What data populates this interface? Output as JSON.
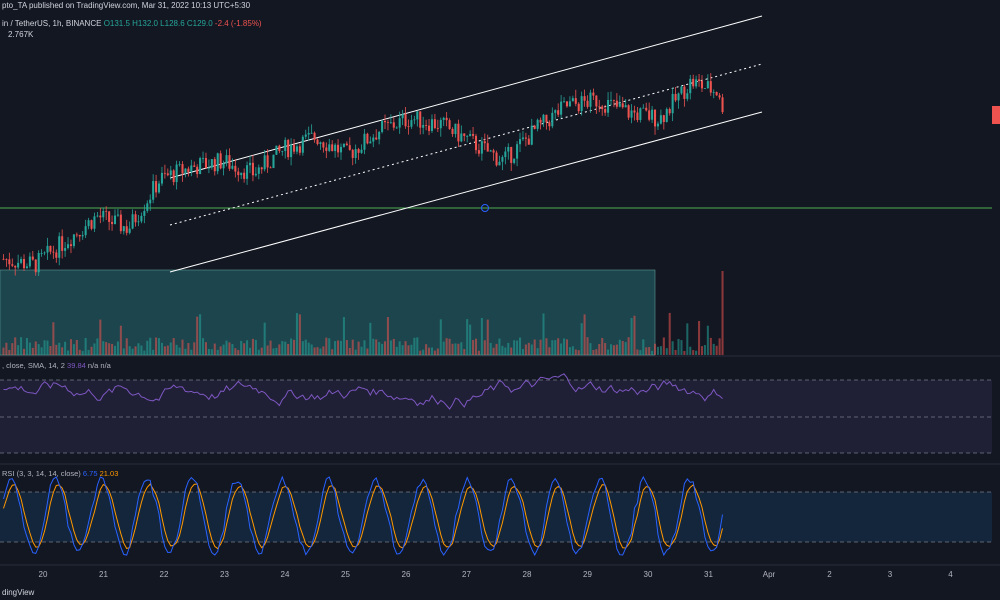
{
  "header": {
    "line1": "pto_TA published on TradingView.com, Mar 31, 2022 10:13 UTC+5:30",
    "line2_prefix": "in / TetherUS, 1h, BINANCE",
    "ohlc": "O131.5 H132.0 L128.6 C129.0",
    "change": "-2.4 (-1.85%)",
    "volume": "2.767K"
  },
  "rsi_label": {
    "name": ", close, SMA, 14, 2",
    "value1": "39.84",
    "rest": "n/a  n/a"
  },
  "stoch_label": {
    "name": "RSI (3, 3, 14, 14, close)",
    "k": "6.75",
    "d": "21.03"
  },
  "footer": "dingView",
  "colors": {
    "background": "#131722",
    "up": "#26a69a",
    "down": "#ef5350",
    "channel": "#ffffff",
    "support_line": "#4caf50",
    "demand_zone": "#1e4a52",
    "rsi_line": "#7e57c2",
    "stoch_k": "#2962ff",
    "stoch_d": "#ff9800"
  },
  "chart_data": {
    "type": "candlestick",
    "title": "",
    "x_ticks": [
      "20",
      "21",
      "22",
      "23",
      "24",
      "25",
      "26",
      "27",
      "28",
      "29",
      "30",
      "31",
      "Apr",
      "2",
      "3",
      "4"
    ],
    "close_series_approx": [
      105,
      104,
      108,
      112,
      110,
      118,
      120,
      121,
      119,
      123,
      125,
      122,
      126,
      128,
      127,
      124,
      121,
      126,
      130,
      131,
      129,
      128,
      134,
      132
    ],
    "ascending_channel": true,
    "horizontal_support": true,
    "demand_zone": {
      "from_day": "19",
      "to_day": "30"
    },
    "rsi_levels": [
      70,
      50,
      30
    ],
    "stoch_rsi_levels": [
      80,
      20
    ]
  }
}
